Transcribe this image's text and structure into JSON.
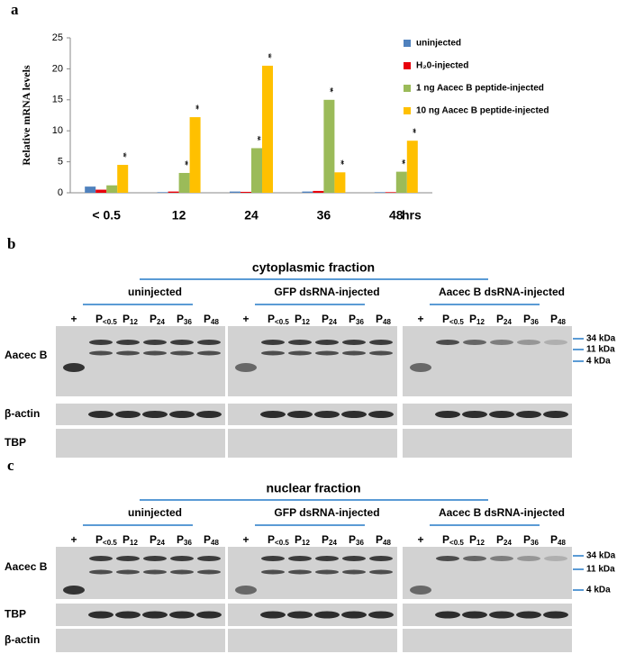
{
  "chart_data": {
    "type": "bar",
    "panel_label": "a",
    "y_label": "Relative mRNA levels",
    "x_unit": "hrs",
    "categories": [
      "< 0.5",
      "12",
      "24",
      "36",
      "48"
    ],
    "series": [
      {
        "name": "uninjected",
        "color": "#4f81bd",
        "values": [
          1,
          0.1,
          0.2,
          0.2,
          0.1
        ]
      },
      {
        "name": "H₂0-injected",
        "color": "#e8000b",
        "values": [
          0.5,
          0.2,
          0.15,
          0.3,
          0.1
        ]
      },
      {
        "name": "1 ng Aacec B peptide-injected",
        "color": "#9bbb59",
        "values": [
          1.2,
          3.2,
          7.2,
          15,
          3.4
        ],
        "significance": [
          null,
          "**",
          "**",
          "**",
          "**"
        ]
      },
      {
        "name": "10 ng Aacec B peptide-injected",
        "color": "#ffc000",
        "values": [
          4.5,
          12.2,
          20.5,
          3.3,
          8.4
        ],
        "significance": [
          "**",
          "**",
          "**",
          "**",
          "**"
        ]
      }
    ],
    "ylim": [
      0,
      25
    ],
    "yticks": [
      0,
      5,
      10,
      15,
      20,
      25
    ],
    "legend": "right"
  },
  "blot_panels": [
    {
      "label": "b",
      "fraction": "cytoplasmic fraction",
      "groups": [
        "uninjected",
        "GFP dsRNA-injected",
        "Aacec B dsRNA-injected"
      ],
      "control_lane": "+",
      "lane_letter": "P",
      "lanes": [
        "<0.5",
        "12",
        "24",
        "36",
        "48"
      ],
      "rows": [
        "Aacec B",
        "β-actin",
        "TBP"
      ],
      "markers": [
        "34 kDa",
        "11 kDa",
        "4 kDa"
      ]
    },
    {
      "label": "c",
      "fraction": "nuclear fraction",
      "groups": [
        "uninjected",
        "GFP dsRNA-injected",
        "Aacec B dsRNA-injected"
      ],
      "control_lane": "+",
      "lane_letter": "P",
      "lanes": [
        "<0.5",
        "12",
        "24",
        "36",
        "48"
      ],
      "rows": [
        "Aacec B",
        "TBP",
        "β-actin"
      ],
      "markers": [
        "34 kDa",
        "11 kDa",
        "4 kDa"
      ]
    }
  ]
}
